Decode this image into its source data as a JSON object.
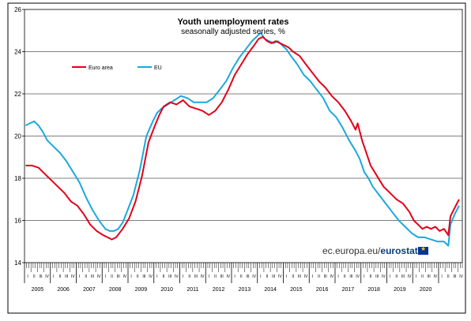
{
  "chart_data": {
    "type": "line",
    "title": "Youth unemployment rates",
    "subtitle": "seasonally adjusted series, %",
    "ylim": [
      14,
      26
    ],
    "yticks": [
      14,
      16,
      18,
      20,
      22,
      24,
      26
    ],
    "years": [
      "2005",
      "2006",
      "2007",
      "2008",
      "2009",
      "2010",
      "2011",
      "2012",
      "2013",
      "2014",
      "2015",
      "2016",
      "2017",
      "2018",
      "2019",
      "2020"
    ],
    "quarter_labels": [
      "I",
      "II",
      "III",
      "IV"
    ],
    "legend_position": "top-left",
    "grid": "horizontal",
    "x_unit": "month index from 2005-01 (0) to 2020-03 (182)",
    "series": [
      {
        "name": "Euro area",
        "color": "#e2001a",
        "points": [
          [
            0,
            18.6
          ],
          [
            3,
            18.6
          ],
          [
            6,
            18.5
          ],
          [
            9,
            18.2
          ],
          [
            12,
            17.9
          ],
          [
            15,
            17.6
          ],
          [
            18,
            17.3
          ],
          [
            21,
            16.9
          ],
          [
            24,
            16.7
          ],
          [
            27,
            16.3
          ],
          [
            30,
            15.8
          ],
          [
            33,
            15.5
          ],
          [
            36,
            15.3
          ],
          [
            38,
            15.2
          ],
          [
            40,
            15.1
          ],
          [
            42,
            15.2
          ],
          [
            45,
            15.6
          ],
          [
            48,
            16.1
          ],
          [
            51,
            16.9
          ],
          [
            54,
            18.1
          ],
          [
            57,
            19.7
          ],
          [
            60,
            20.5
          ],
          [
            62,
            21.0
          ],
          [
            64,
            21.4
          ],
          [
            67,
            21.6
          ],
          [
            70,
            21.5
          ],
          [
            73,
            21.7
          ],
          [
            76,
            21.4
          ],
          [
            79,
            21.3
          ],
          [
            82,
            21.2
          ],
          [
            85,
            21.0
          ],
          [
            88,
            21.2
          ],
          [
            91,
            21.6
          ],
          [
            94,
            22.2
          ],
          [
            97,
            22.9
          ],
          [
            100,
            23.4
          ],
          [
            103,
            23.9
          ],
          [
            106,
            24.3
          ],
          [
            108,
            24.6
          ],
          [
            110,
            24.7
          ],
          [
            112,
            24.5
          ],
          [
            114,
            24.4
          ],
          [
            116,
            24.5
          ],
          [
            118,
            24.4
          ],
          [
            120,
            24.3
          ],
          [
            122,
            24.2
          ],
          [
            124,
            24.0
          ],
          [
            127,
            23.8
          ],
          [
            130,
            23.4
          ],
          [
            133,
            23.0
          ],
          [
            136,
            22.6
          ],
          [
            139,
            22.3
          ],
          [
            142,
            21.9
          ],
          [
            145,
            21.6
          ],
          [
            148,
            21.2
          ],
          [
            151,
            20.7
          ],
          [
            153,
            20.3
          ],
          [
            154,
            20.6
          ],
          [
            156,
            19.8
          ],
          [
            158,
            19.2
          ],
          [
            160,
            18.6
          ],
          [
            163,
            18.1
          ],
          [
            166,
            17.6
          ],
          [
            169,
            17.3
          ],
          [
            172,
            17.0
          ],
          [
            175,
            16.8
          ],
          [
            178,
            16.4
          ],
          [
            180,
            16.0
          ],
          [
            182,
            15.8
          ],
          [
            184,
            15.6
          ],
          [
            186,
            15.7
          ],
          [
            188,
            15.6
          ],
          [
            190,
            15.7
          ],
          [
            192,
            15.5
          ],
          [
            194,
            15.6
          ],
          [
            196,
            15.3
          ],
          [
            197,
            16.2
          ],
          [
            199,
            16.6
          ],
          [
            201,
            17.0
          ]
        ]
      },
      {
        "name": "EU",
        "color": "#1ba8dd",
        "points": [
          [
            0,
            20.5
          ],
          [
            2,
            20.6
          ],
          [
            4,
            20.7
          ],
          [
            6,
            20.5
          ],
          [
            8,
            20.2
          ],
          [
            10,
            19.8
          ],
          [
            13,
            19.5
          ],
          [
            16,
            19.2
          ],
          [
            19,
            18.8
          ],
          [
            22,
            18.3
          ],
          [
            25,
            17.8
          ],
          [
            28,
            17.1
          ],
          [
            31,
            16.5
          ],
          [
            34,
            16.0
          ],
          [
            37,
            15.6
          ],
          [
            39,
            15.5
          ],
          [
            41,
            15.5
          ],
          [
            43,
            15.6
          ],
          [
            45,
            15.9
          ],
          [
            47,
            16.4
          ],
          [
            50,
            17.2
          ],
          [
            53,
            18.4
          ],
          [
            56,
            20.0
          ],
          [
            59,
            20.7
          ],
          [
            61,
            21.1
          ],
          [
            63,
            21.3
          ],
          [
            66,
            21.5
          ],
          [
            69,
            21.7
          ],
          [
            72,
            21.9
          ],
          [
            75,
            21.8
          ],
          [
            78,
            21.6
          ],
          [
            81,
            21.6
          ],
          [
            84,
            21.6
          ],
          [
            87,
            21.8
          ],
          [
            90,
            22.2
          ],
          [
            93,
            22.6
          ],
          [
            96,
            23.2
          ],
          [
            99,
            23.7
          ],
          [
            102,
            24.1
          ],
          [
            105,
            24.5
          ],
          [
            107,
            24.7
          ],
          [
            109,
            24.9
          ],
          [
            111,
            24.6
          ],
          [
            113,
            24.5
          ],
          [
            115,
            24.4
          ],
          [
            117,
            24.5
          ],
          [
            119,
            24.3
          ],
          [
            121,
            24.1
          ],
          [
            123,
            23.8
          ],
          [
            126,
            23.4
          ],
          [
            129,
            22.9
          ],
          [
            132,
            22.6
          ],
          [
            135,
            22.2
          ],
          [
            138,
            21.8
          ],
          [
            141,
            21.2
          ],
          [
            144,
            20.9
          ],
          [
            147,
            20.4
          ],
          [
            150,
            19.8
          ],
          [
            153,
            19.3
          ],
          [
            155,
            18.9
          ],
          [
            157,
            18.3
          ],
          [
            159,
            18.0
          ],
          [
            161,
            17.6
          ],
          [
            164,
            17.2
          ],
          [
            167,
            16.8
          ],
          [
            170,
            16.4
          ],
          [
            173,
            16.0
          ],
          [
            176,
            15.7
          ],
          [
            179,
            15.4
          ],
          [
            182,
            15.2
          ],
          [
            185,
            15.2
          ],
          [
            188,
            15.1
          ],
          [
            191,
            15.0
          ],
          [
            194,
            15.0
          ],
          [
            196,
            14.8
          ],
          [
            197,
            15.8
          ],
          [
            199,
            16.3
          ],
          [
            201,
            16.7
          ]
        ]
      }
    ]
  },
  "branding": {
    "domain": "ec.europa.eu/",
    "name": "eurostat"
  }
}
